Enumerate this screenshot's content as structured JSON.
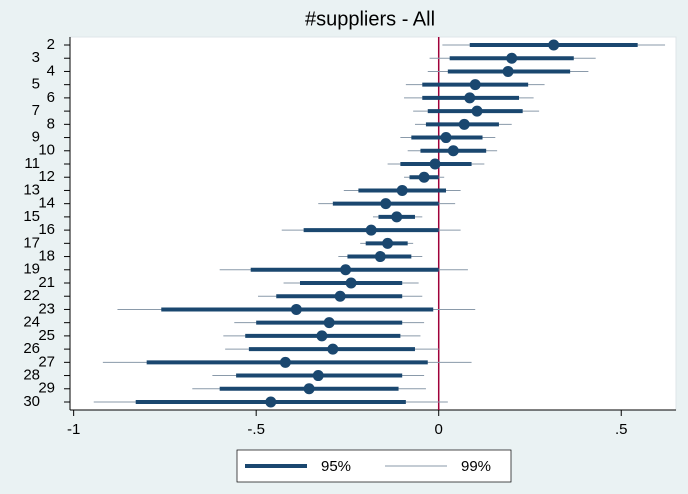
{
  "chart_data": {
    "type": "coefplot",
    "title": "#suppliers - All",
    "categories": [
      "2",
      "3",
      "4",
      "5",
      "6",
      "7",
      "8",
      "9",
      "10",
      "11",
      "12",
      "13",
      "14",
      "15",
      "16",
      "17",
      "18",
      "19",
      "21",
      "22",
      "23",
      "24",
      "25",
      "26",
      "27",
      "28",
      "29",
      "30"
    ],
    "values": [
      0.315,
      0.2,
      0.19,
      0.1,
      0.085,
      0.105,
      0.07,
      0.02,
      0.04,
      -0.01,
      -0.04,
      -0.1,
      -0.145,
      -0.115,
      -0.185,
      -0.14,
      -0.16,
      -0.255,
      -0.24,
      -0.27,
      -0.39,
      -0.3,
      -0.32,
      -0.29,
      -0.42,
      -0.33,
      -0.355,
      -0.46
    ],
    "color": "#1a476f",
    "intervals": [
      {
        "name": "95%",
        "color": "#1a476f",
        "low": [
          0.085,
          0.03,
          0.025,
          -0.045,
          -0.045,
          -0.03,
          -0.035,
          -0.075,
          -0.05,
          -0.105,
          -0.08,
          -0.22,
          -0.29,
          -0.165,
          -0.37,
          -0.2,
          -0.25,
          -0.515,
          -0.38,
          -0.445,
          -0.76,
          -0.5,
          -0.53,
          -0.52,
          -0.8,
          -0.555,
          -0.6,
          -0.83
        ],
        "high": [
          0.545,
          0.37,
          0.36,
          0.245,
          0.22,
          0.23,
          0.165,
          0.12,
          0.13,
          0.09,
          0,
          0.02,
          0,
          -0.065,
          0,
          -0.085,
          -0.075,
          0,
          -0.1,
          -0.1,
          -0.015,
          -0.1,
          -0.105,
          -0.065,
          -0.03,
          -0.1,
          -0.11,
          -0.09
        ]
      },
      {
        "name": "99%",
        "color": "#8a9aaa",
        "low": [
          0.01,
          -0.025,
          -0.03,
          -0.09,
          -0.095,
          -0.07,
          -0.065,
          -0.105,
          -0.085,
          -0.14,
          -0.095,
          -0.26,
          -0.33,
          -0.18,
          -0.43,
          -0.215,
          -0.275,
          -0.6,
          -0.425,
          -0.495,
          -0.88,
          -0.56,
          -0.59,
          -0.585,
          -0.92,
          -0.62,
          -0.675,
          -0.945
        ],
        "high": [
          0.62,
          0.43,
          0.41,
          0.29,
          0.26,
          0.275,
          0.2,
          0.155,
          0.16,
          0.125,
          0.015,
          0.06,
          0.045,
          -0.045,
          0.06,
          -0.07,
          -0.045,
          0.08,
          -0.055,
          -0.045,
          0.1,
          -0.04,
          -0.05,
          0,
          0.09,
          -0.04,
          -0.035,
          0.025
        ]
      }
    ],
    "xlim": [
      -1.01,
      0.65
    ],
    "xticks": [
      -1,
      {
        "value": -0.5,
        "label": "-.5"
      },
      0,
      {
        "value": 0.5,
        "label": ".5"
      }
    ],
    "reference_line": {
      "value": 0,
      "color": "#a0003a"
    },
    "legend": "bottom"
  }
}
